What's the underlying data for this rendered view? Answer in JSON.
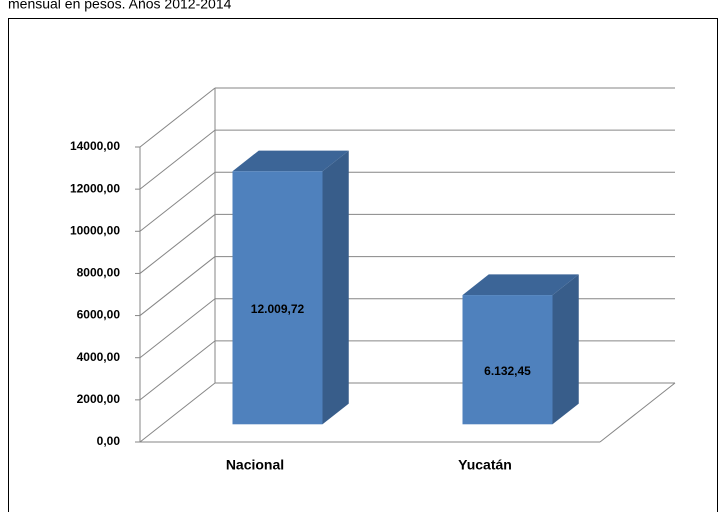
{
  "chart_data": {
    "type": "bar3d",
    "title": "mensual en pesos. Años 2012-2014",
    "categories": [
      "Nacional",
      "Yucatán"
    ],
    "values": [
      12009.72,
      6132.45
    ],
    "value_labels": [
      "12.009,72",
      "6.132,45"
    ],
    "color": "#4f81bd",
    "ylim": [
      0,
      14000
    ],
    "yticks": [
      {
        "value": 0,
        "label": "0,00"
      },
      {
        "value": 2000,
        "label": "2000,00"
      },
      {
        "value": 4000,
        "label": "4000,00"
      },
      {
        "value": 6000,
        "label": "6000,00"
      },
      {
        "value": 8000,
        "label": "8000,00"
      },
      {
        "value": 10000,
        "label": "10000,00"
      },
      {
        "value": 12000,
        "label": "12000,00"
      },
      {
        "value": 14000,
        "label": "14000,00"
      }
    ],
    "grid": true
  }
}
